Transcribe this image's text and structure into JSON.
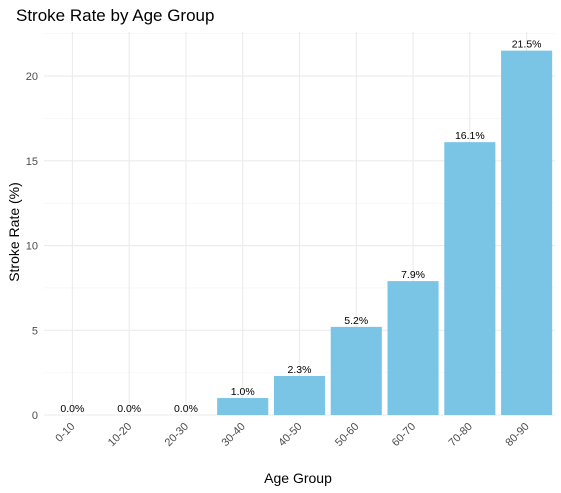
{
  "chart_data": {
    "type": "bar",
    "title": "Stroke Rate by Age Group",
    "xlabel": "Age Group",
    "ylabel": "Stroke Rate (%)",
    "categories": [
      "0-10",
      "10-20",
      "20-30",
      "30-40",
      "40-50",
      "50-60",
      "60-70",
      "70-80",
      "80-90"
    ],
    "values": [
      0.0,
      0.0,
      0.0,
      1.0,
      2.3,
      5.2,
      7.9,
      16.1,
      21.5
    ],
    "data_labels": [
      "0.0%",
      "0.0%",
      "0.0%",
      "1.0%",
      "2.3%",
      "5.2%",
      "7.9%",
      "16.1%",
      "21.5%"
    ],
    "yticks": [
      0,
      5,
      10,
      15,
      20
    ],
    "ylim": [
      0,
      22.6
    ],
    "grid": true,
    "legend": "none",
    "bar_color": "#7ac4e6",
    "x_tick_rotation_deg": 45
  }
}
